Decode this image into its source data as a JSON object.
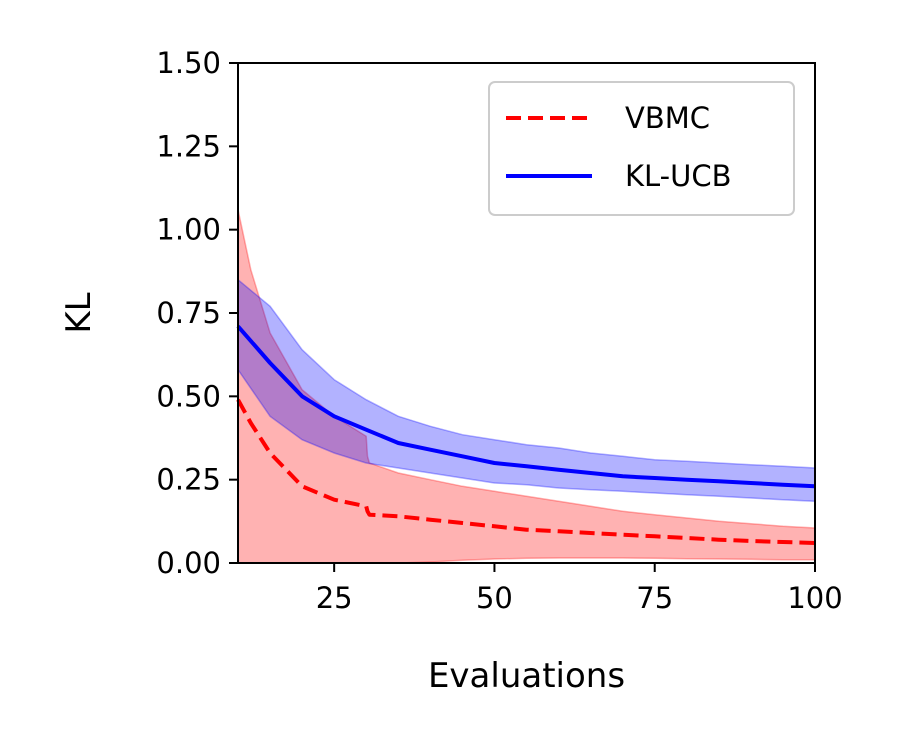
{
  "chart_data": {
    "type": "line",
    "title": "",
    "xlabel": "Evaluations",
    "ylabel": "KL",
    "xlim": [
      10,
      100
    ],
    "ylim": [
      0,
      1.5
    ],
    "xticks": [
      25,
      50,
      75,
      100
    ],
    "xtick_labels": [
      "25",
      "50",
      "75",
      "100"
    ],
    "yticks": [
      0,
      0.25,
      0.5,
      0.75,
      1.0,
      1.25,
      1.5
    ],
    "ytick_labels": [
      "0.00",
      "0.25",
      "0.50",
      "0.75",
      "1.00",
      "1.25",
      "1.50"
    ],
    "grid": false,
    "legend_position": "upper right",
    "series": [
      {
        "name": "VBMC",
        "color": "#ff0000",
        "line_style": "dashed",
        "band_color": "#ff0000",
        "x": [
          10,
          12,
          15,
          20,
          25,
          30,
          30.2,
          30.5,
          35,
          40,
          45,
          50,
          55,
          60,
          65,
          70,
          75,
          80,
          85,
          90,
          95,
          100
        ],
        "y": [
          0.49,
          0.42,
          0.33,
          0.23,
          0.19,
          0.17,
          0.155,
          0.145,
          0.14,
          0.13,
          0.12,
          0.11,
          0.1,
          0.095,
          0.09,
          0.085,
          0.08,
          0.075,
          0.07,
          0.066,
          0.063,
          0.06
        ],
        "lower": [
          0,
          0,
          0,
          0,
          0,
          0,
          0,
          0,
          0,
          0.003,
          0.008,
          0.012,
          0.014,
          0.015,
          0.015,
          0.015,
          0.014,
          0.013,
          0.012,
          0.011,
          0.01,
          0.01
        ],
        "upper": [
          1.06,
          0.88,
          0.69,
          0.52,
          0.44,
          0.38,
          0.32,
          0.3,
          0.27,
          0.25,
          0.23,
          0.215,
          0.2,
          0.185,
          0.17,
          0.155,
          0.145,
          0.135,
          0.125,
          0.118,
          0.11,
          0.105
        ]
      },
      {
        "name": "KL-UCB",
        "color": "#0000ff",
        "line_style": "solid",
        "band_color": "#0000ff",
        "x": [
          10,
          15,
          20,
          25,
          30,
          35,
          40,
          45,
          50,
          55,
          60,
          65,
          70,
          75,
          80,
          85,
          90,
          95,
          100
        ],
        "y": [
          0.71,
          0.6,
          0.5,
          0.44,
          0.4,
          0.36,
          0.34,
          0.32,
          0.3,
          0.29,
          0.28,
          0.27,
          0.26,
          0.255,
          0.25,
          0.245,
          0.24,
          0.235,
          0.23
        ],
        "lower": [
          0.58,
          0.44,
          0.37,
          0.33,
          0.3,
          0.285,
          0.27,
          0.255,
          0.24,
          0.235,
          0.225,
          0.22,
          0.215,
          0.21,
          0.205,
          0.2,
          0.195,
          0.19,
          0.185
        ],
        "upper": [
          0.85,
          0.77,
          0.64,
          0.55,
          0.49,
          0.44,
          0.41,
          0.385,
          0.37,
          0.355,
          0.345,
          0.33,
          0.32,
          0.31,
          0.305,
          0.3,
          0.295,
          0.29,
          0.285
        ]
      }
    ]
  }
}
